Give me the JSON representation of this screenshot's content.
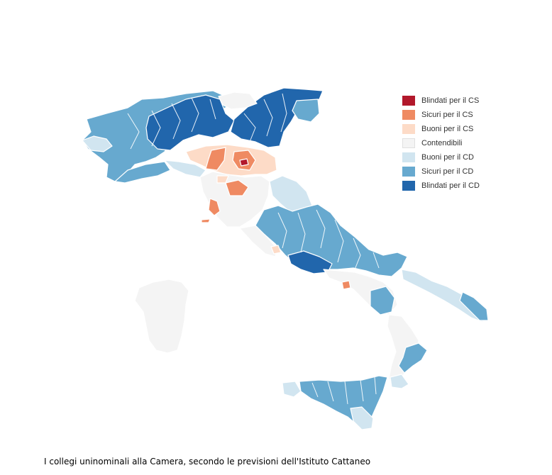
{
  "colors": {
    "blindati_cs": "#b2182b",
    "sicuri_cs": "#ef8a62",
    "buoni_cs": "#fddbc7",
    "contendibili": "#f4f4f4",
    "buoni_cd": "#d1e5f0",
    "sicuri_cd": "#67a9cf",
    "blindati_cd": "#2166ac",
    "border": "#ffffff"
  },
  "legend": {
    "items": [
      {
        "label": "Blindati per il CS",
        "color": "#b2182b"
      },
      {
        "label": "Sicuri per il CS",
        "color": "#ef8a62"
      },
      {
        "label": "Buoni per il CS",
        "color": "#fddbc7"
      },
      {
        "label": "Contendibili",
        "color": "#f4f4f4"
      },
      {
        "label": "Buoni per il CD",
        "color": "#d1e5f0"
      },
      {
        "label": "Sicuri per il CD",
        "color": "#67a9cf"
      },
      {
        "label": "Blindati per il CD",
        "color": "#2166ac"
      }
    ]
  },
  "caption": "I collegi uninominali alla Camera, secondo le previsioni dell'Istituto Cattaneo"
}
